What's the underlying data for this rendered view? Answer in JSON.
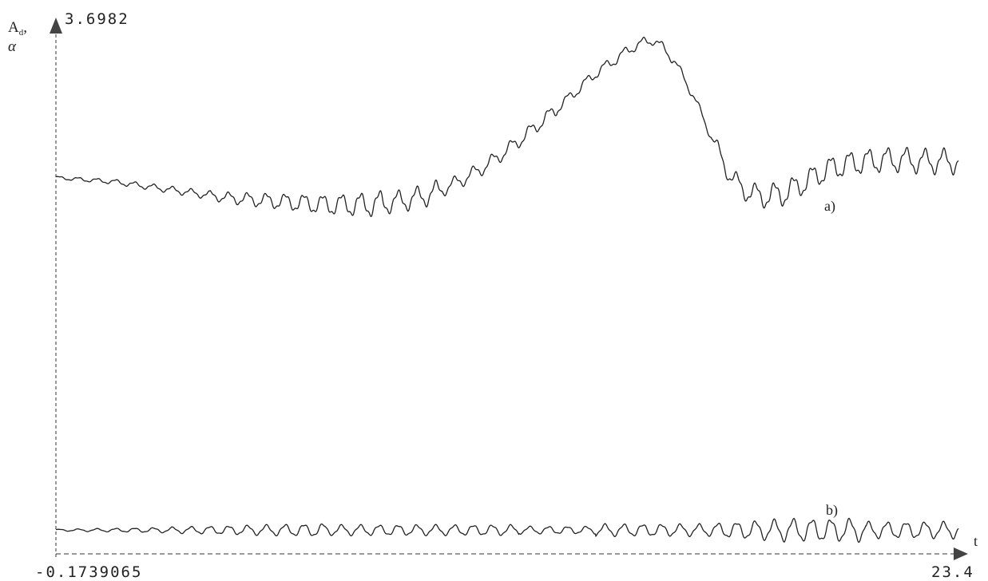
{
  "chart_data": {
    "type": "line",
    "y_axis_label_line1": "A",
    "y_axis_label_sub": "d",
    "y_axis_label_comma": ",",
    "y_axis_label_line2": "α",
    "x_axis_label": "t",
    "y_max_label": "3.6982",
    "y_min_label": "-0.1739065",
    "x_max_label": "23.4",
    "xlim": [
      0,
      23.4
    ],
    "ylim": [
      -0.1739065,
      3.6982
    ],
    "grid": false,
    "series": [
      {
        "label": "a)",
        "color": "#222222",
        "x": [
          0,
          0.5,
          1,
          1.5,
          2,
          2.5,
          3,
          3.5,
          4,
          4.5,
          5,
          5.5,
          6,
          6.5,
          7,
          7.5,
          8,
          8.5,
          9,
          9.5,
          10,
          10.5,
          11,
          11.5,
          12,
          12.5,
          13,
          13.5,
          14,
          14.5,
          15,
          15.5,
          16,
          16.5,
          17,
          17.5,
          18,
          18.5,
          19,
          19.5,
          20,
          20.5,
          21,
          21.5,
          22,
          22.5,
          23,
          23.4
        ],
        "y": [
          2.6,
          2.59,
          2.58,
          2.57,
          2.55,
          2.53,
          2.51,
          2.49,
          2.47,
          2.45,
          2.44,
          2.43,
          2.42,
          2.41,
          2.4,
          2.4,
          2.4,
          2.41,
          2.43,
          2.46,
          2.51,
          2.58,
          2.66,
          2.76,
          2.87,
          2.99,
          3.11,
          3.24,
          3.37,
          3.47,
          3.57,
          3.62,
          3.48,
          3.22,
          2.9,
          2.6,
          2.48,
          2.46,
          2.5,
          2.58,
          2.66,
          2.7,
          2.72,
          2.73,
          2.73,
          2.72,
          2.72,
          2.72
        ]
      },
      {
        "label": "b)",
        "color": "#222222",
        "x": [
          0,
          0.5,
          1,
          1.5,
          2,
          2.5,
          3,
          3.5,
          4,
          4.5,
          5,
          5.5,
          6,
          6.5,
          7,
          7.5,
          8,
          8.5,
          9,
          9.5,
          10,
          10.5,
          11,
          11.5,
          12,
          12.5,
          13,
          13.5,
          14,
          14.5,
          15,
          15.5,
          16,
          16.5,
          17,
          17.5,
          18,
          18.5,
          19,
          19.5,
          20,
          20.5,
          21,
          21.5,
          22,
          22.5,
          23,
          23.4
        ],
        "y": [
          0,
          0.02,
          0.03,
          0.05,
          0.06,
          0.07,
          0.08,
          0.08,
          0.08,
          0.09,
          0.09,
          0.1,
          0.1,
          0.1,
          0.11,
          0.12,
          0.13,
          0.14,
          0.15,
          0.16,
          0.17,
          0.17,
          0.17,
          0.18,
          0.18,
          0.18,
          0.18,
          0.18,
          0.19,
          0.2,
          0.21,
          0.22,
          0.23,
          0.22,
          0.21,
          0.21,
          0.21,
          0.22,
          0.23,
          0.24,
          0.25,
          0.25,
          0.24,
          0.24,
          0.23,
          0.23,
          0.22,
          0.22
        ]
      }
    ]
  }
}
